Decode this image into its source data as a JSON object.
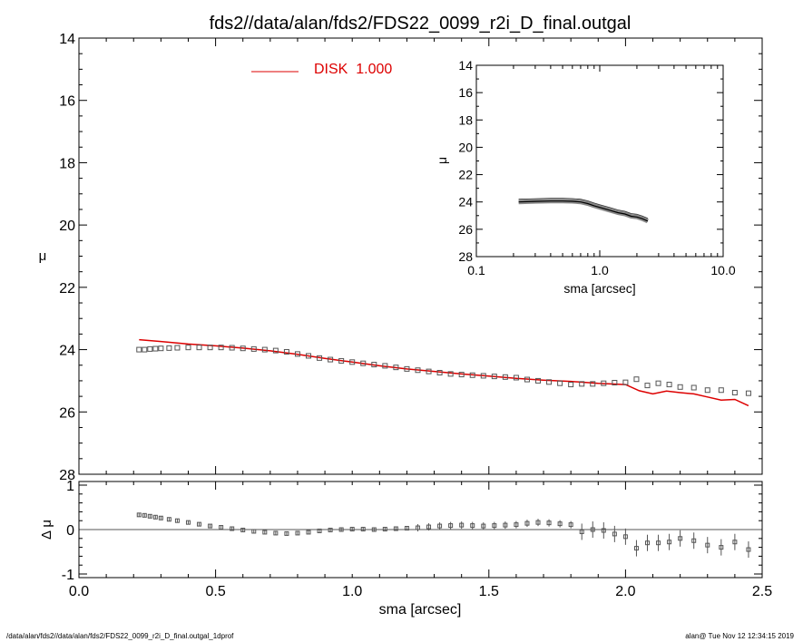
{
  "title": "fds2//data/alan/fds2/FDS22_0099_r2i_D_final.outgal",
  "footer": {
    "path": "/data/alan/fds2//data/alan/fds2/FDS22_0099_r2i_D_final.outgal_1dprof",
    "stamp": "alan@  Tue Nov 12 12:34:15 2019"
  },
  "colors": {
    "model": "#dd0000",
    "data": "#555555",
    "axes": "#000000"
  },
  "chart_data": [
    {
      "id": "main",
      "type": "line",
      "xlabel": "",
      "ylabel": "μ",
      "xlim": [
        0.0,
        2.5
      ],
      "ylim": [
        28,
        14
      ],
      "yticks": [
        "14",
        "16",
        "18",
        "20",
        "22",
        "24",
        "26",
        "28"
      ],
      "legend": {
        "label": "DISK  1.000",
        "position": "top-left"
      },
      "series": [
        {
          "name": "DISK  1.000",
          "style": "line",
          "x": [
            0.22,
            0.3,
            0.4,
            0.5,
            0.6,
            0.7,
            0.8,
            0.9,
            1.0,
            1.1,
            1.2,
            1.3,
            1.4,
            1.5,
            1.6,
            1.7,
            1.8,
            1.9,
            2.0,
            2.05,
            2.1,
            2.15,
            2.2,
            2.25,
            2.3,
            2.35,
            2.4,
            2.45
          ],
          "y": [
            23.68,
            23.74,
            23.82,
            23.88,
            23.95,
            24.04,
            24.15,
            24.28,
            24.4,
            24.52,
            24.62,
            24.7,
            24.78,
            24.85,
            24.92,
            24.98,
            25.02,
            25.08,
            25.12,
            25.32,
            25.42,
            25.33,
            25.38,
            25.42,
            25.52,
            25.62,
            25.6,
            25.8
          ]
        },
        {
          "name": "",
          "style": "markers",
          "x": [
            0.22,
            0.24,
            0.26,
            0.28,
            0.3,
            0.33,
            0.36,
            0.4,
            0.44,
            0.48,
            0.52,
            0.56,
            0.6,
            0.64,
            0.68,
            0.72,
            0.76,
            0.8,
            0.84,
            0.88,
            0.92,
            0.96,
            1.0,
            1.04,
            1.08,
            1.12,
            1.16,
            1.2,
            1.24,
            1.28,
            1.32,
            1.36,
            1.4,
            1.44,
            1.48,
            1.52,
            1.56,
            1.6,
            1.64,
            1.68,
            1.72,
            1.76,
            1.8,
            1.84,
            1.88,
            1.92,
            1.96,
            2.0,
            2.04,
            2.08,
            2.12,
            2.16,
            2.2,
            2.25,
            2.3,
            2.35,
            2.4,
            2.45
          ],
          "y": [
            24.0,
            24.0,
            23.98,
            23.97,
            23.96,
            23.95,
            23.94,
            23.93,
            23.93,
            23.93,
            23.93,
            23.94,
            23.96,
            23.98,
            24.0,
            24.03,
            24.07,
            24.14,
            24.2,
            24.27,
            24.32,
            24.36,
            24.4,
            24.44,
            24.48,
            24.52,
            24.57,
            24.62,
            24.66,
            24.7,
            24.74,
            24.78,
            24.8,
            24.82,
            24.84,
            24.86,
            24.88,
            24.9,
            24.96,
            25.0,
            25.04,
            25.08,
            25.12,
            25.1,
            25.1,
            25.08,
            25.06,
            25.05,
            24.95,
            25.15,
            25.08,
            25.12,
            25.2,
            25.22,
            25.3,
            25.3,
            25.38,
            25.4
          ]
        }
      ]
    },
    {
      "id": "residual",
      "type": "scatter",
      "xlabel": "sma [arcsec]",
      "ylabel": "Δ μ",
      "xlim": [
        0.0,
        2.5
      ],
      "ylim": [
        -1,
        1
      ],
      "xticks": [
        "0.0",
        "0.5",
        "1.0",
        "1.5",
        "2.0",
        "2.5"
      ],
      "yticks": [
        "1",
        "0",
        "-1"
      ],
      "reference_line": 0,
      "series": [
        {
          "name": "",
          "x": [
            0.22,
            0.24,
            0.26,
            0.28,
            0.3,
            0.33,
            0.36,
            0.4,
            0.44,
            0.48,
            0.52,
            0.56,
            0.6,
            0.64,
            0.68,
            0.72,
            0.76,
            0.8,
            0.84,
            0.88,
            0.92,
            0.96,
            1.0,
            1.04,
            1.08,
            1.12,
            1.16,
            1.2,
            1.24,
            1.28,
            1.32,
            1.36,
            1.4,
            1.44,
            1.48,
            1.52,
            1.56,
            1.6,
            1.64,
            1.68,
            1.72,
            1.76,
            1.8,
            1.84,
            1.88,
            1.92,
            1.96,
            2.0,
            2.04,
            2.08,
            2.12,
            2.16,
            2.2,
            2.25,
            2.3,
            2.35,
            2.4,
            2.45
          ],
          "y": [
            0.33,
            0.32,
            0.3,
            0.28,
            0.26,
            0.23,
            0.2,
            0.16,
            0.12,
            0.08,
            0.05,
            0.02,
            -0.01,
            -0.04,
            -0.06,
            -0.08,
            -0.09,
            -0.08,
            -0.06,
            -0.03,
            -0.01,
            0.0,
            0.01,
            0.01,
            0.0,
            0.01,
            0.02,
            0.03,
            0.04,
            0.06,
            0.08,
            0.09,
            0.1,
            0.09,
            0.08,
            0.09,
            0.1,
            0.11,
            0.14,
            0.16,
            0.15,
            0.13,
            0.11,
            -0.05,
            0.0,
            -0.02,
            -0.1,
            -0.16,
            -0.42,
            -0.3,
            -0.3,
            -0.28,
            -0.2,
            -0.25,
            -0.35,
            -0.4,
            -0.28,
            -0.45
          ]
        }
      ]
    },
    {
      "id": "inset",
      "type": "line",
      "xlabel": "sma [arcsec]",
      "ylabel": "μ",
      "xscale": "log",
      "xlim": [
        0.1,
        10.0
      ],
      "ylim": [
        28,
        14
      ],
      "xticks": [
        "0.1",
        "1.0",
        "10.0"
      ],
      "yticks": [
        "14",
        "16",
        "18",
        "20",
        "22",
        "24",
        "26",
        "28"
      ],
      "series": [
        {
          "name": "",
          "x": [
            0.22,
            0.3,
            0.4,
            0.5,
            0.6,
            0.7,
            0.8,
            0.9,
            1.0,
            1.2,
            1.4,
            1.6,
            1.8,
            2.0,
            2.2,
            2.45
          ],
          "y": [
            24.0,
            23.96,
            23.93,
            23.93,
            23.95,
            24.0,
            24.12,
            24.28,
            24.4,
            24.6,
            24.78,
            24.88,
            25.05,
            25.1,
            25.22,
            25.4
          ]
        }
      ]
    }
  ]
}
